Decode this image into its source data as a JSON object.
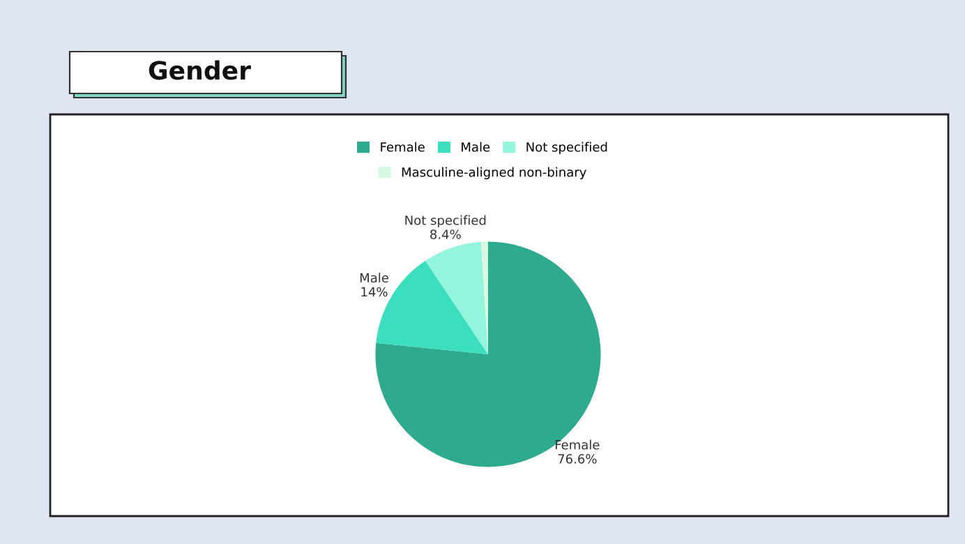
{
  "chart_data": {
    "type": "pie",
    "title": "Gender",
    "categories": [
      "Female",
      "Male",
      "Not specified",
      "Masculine-aligned non-binary"
    ],
    "values": [
      76.6,
      14,
      8.4,
      1.0
    ],
    "colors": [
      "#2eaa8f",
      "#3bdfc0",
      "#93f5dc",
      "#d7f8e3"
    ],
    "value_labels": [
      "Female\n76.6%",
      "Male\n14%",
      "Not specified\n8.4%",
      null
    ],
    "legend": "top"
  }
}
